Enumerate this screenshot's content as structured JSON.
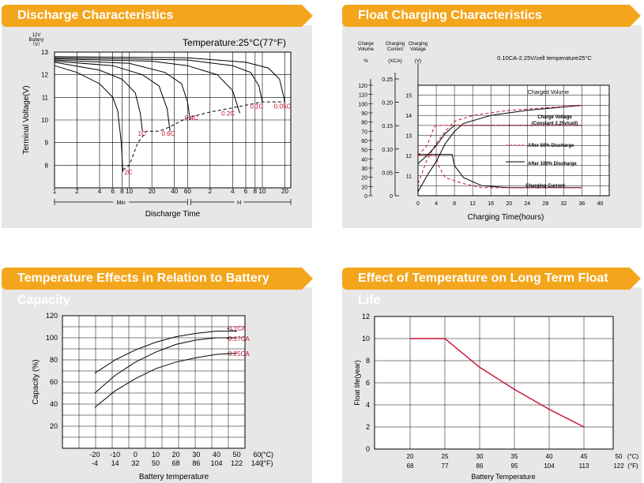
{
  "panels": [
    {
      "title": "Discharge Characteristics"
    },
    {
      "title": "Float Charging Characteristics"
    },
    {
      "title": "Temperature Effects in Relation to Battery Capacity"
    },
    {
      "title": "Effect of Temperature on Long Term Float Life"
    }
  ],
  "chart_data": [
    {
      "type": "line",
      "title": "Discharge Characteristics",
      "ylabel": "Terminal Voltage(V)",
      "ylabel_note": [
        "12V",
        "Battery",
        "（V）"
      ],
      "xlabel": "Discharge Time",
      "annotation": "Temperature:25°C(77°F)",
      "ylim": [
        7,
        13
      ],
      "y_ticks": [
        "13",
        "12",
        "11",
        "10",
        "9",
        "8"
      ],
      "x_ticks": [
        "1",
        "2",
        "4",
        "6",
        "8",
        "10",
        "20",
        "40",
        "60",
        "2",
        "4",
        "6",
        "8",
        "10",
        "20"
      ],
      "x_units": [
        "Min",
        "H"
      ],
      "series": [
        {
          "name": "2C",
          "values": [
            [
              1,
              12.4
            ],
            [
              2,
              12.1
            ],
            [
              4,
              11.6
            ],
            [
              6,
              11.0
            ],
            [
              7,
              10.4
            ],
            [
              7.8,
              9.0
            ],
            [
              8.2,
              7.7
            ]
          ]
        },
        {
          "name": "1C",
          "values": [
            [
              1,
              12.55
            ],
            [
              4,
              12.2
            ],
            [
              8,
              11.8
            ],
            [
              12,
              11.2
            ],
            [
              14,
              10.3
            ],
            [
              15,
              9.5
            ]
          ]
        },
        {
          "name": "0.6C",
          "values": [
            [
              1,
              12.6
            ],
            [
              6,
              12.4
            ],
            [
              15,
              12.0
            ],
            [
              25,
              11.5
            ],
            [
              32,
              10.5
            ],
            [
              35,
              9.5
            ]
          ]
        },
        {
          "name": "0.4C",
          "values": [
            [
              1,
              12.65
            ],
            [
              10,
              12.5
            ],
            [
              30,
              12.1
            ],
            [
              50,
              11.6
            ],
            [
              60,
              10.8
            ],
            [
              65,
              10.0
            ]
          ]
        },
        {
          "name": "0.2C",
          "values": [
            [
              1,
              12.7
            ],
            [
              20,
              12.6
            ],
            [
              60,
              12.4
            ],
            [
              150,
              12.0
            ],
            [
              240,
              11.3
            ],
            [
              300,
              10.3
            ]
          ]
        },
        {
          "name": "0.1C",
          "values": [
            [
              1,
              12.75
            ],
            [
              60,
              12.65
            ],
            [
              240,
              12.4
            ],
            [
              420,
              12.1
            ],
            [
              540,
              11.5
            ],
            [
              600,
              10.8
            ]
          ]
        },
        {
          "name": "0.05C",
          "values": [
            [
              1,
              12.8
            ],
            [
              60,
              12.75
            ],
            [
              360,
              12.55
            ],
            [
              720,
              12.3
            ],
            [
              1020,
              11.8
            ],
            [
              1200,
              10.8
            ]
          ]
        }
      ],
      "end_voltage_curve": [
        [
          8.2,
          7.8
        ],
        [
          10,
          8.0
        ],
        [
          13,
          9.0
        ],
        [
          17,
          9.5
        ],
        [
          25,
          9.5
        ],
        [
          35,
          9.7
        ],
        [
          60,
          10.1
        ],
        [
          120,
          10.35
        ],
        [
          300,
          10.6
        ],
        [
          600,
          10.8
        ],
        [
          1200,
          10.8
        ]
      ]
    },
    {
      "type": "line",
      "title": "Float Charging Characteristics",
      "xlabel": "Charging Time(hours)",
      "header_labels": [
        "Charge Volume",
        "Charging Current",
        "Charging Voltage"
      ],
      "units": [
        "%",
        "(XCA)",
        "(V)"
      ],
      "annotation": "0.10CA-2.25V/cell  temperature25°C",
      "volume_ticks": [
        "120",
        "110",
        "100",
        "90",
        "80",
        "70",
        "60",
        "50",
        "40",
        "30",
        "20",
        "10",
        "0"
      ],
      "current_ticks": [
        "0.25",
        "0.20",
        "0.15",
        "0.10",
        "0.05",
        "0"
      ],
      "voltage_ticks": [
        "15",
        "14",
        "13",
        "12",
        "11"
      ],
      "x_ticks": [
        "0",
        "4",
        "8",
        "12",
        "16",
        "20",
        "24",
        "28",
        "32",
        "36",
        "40"
      ],
      "curve_labels": [
        "Charged Volume",
        "Charge Voltage (Constant 2.25v/cell)",
        "Charging Current"
      ],
      "legend": [
        {
          "name": "After 50% Discharge",
          "style": "dashed",
          "color": "#c8102e"
        },
        {
          "name": "After 100% Discharge",
          "style": "solid",
          "color": "#000000"
        }
      ],
      "xlim": [
        0,
        42
      ],
      "voltage_ylim": [
        10,
        15.5
      ],
      "series": [
        {
          "name": "Charged Volume",
          "style": "solid",
          "values": [
            [
              0,
              10.2
            ],
            [
              2,
              11.0
            ],
            [
              4,
              11.7
            ],
            [
              6,
              12.6
            ],
            [
              8,
              13.2
            ],
            [
              10,
              13.6
            ],
            [
              16,
              14.0
            ],
            [
              24,
              14.25
            ],
            [
              36,
              14.5
            ]
          ]
        },
        {
          "name": "Charged Volume",
          "style": "dashed",
          "values": [
            [
              0,
              10.6
            ],
            [
              2,
              11.8
            ],
            [
              4,
              12.6
            ],
            [
              6,
              13.2
            ],
            [
              8,
              13.7
            ],
            [
              12,
              14.0
            ],
            [
              20,
              14.25
            ],
            [
              36,
              14.5
            ]
          ]
        },
        {
          "name": "Charge Voltage",
          "style": "solid",
          "values": [
            [
              0,
              11.6
            ],
            [
              2,
              12.0
            ],
            [
              4,
              12.5
            ],
            [
              6,
              13.1
            ],
            [
              8,
              13.5
            ],
            [
              20,
              13.5
            ],
            [
              36,
              13.5
            ]
          ]
        },
        {
          "name": "Charge Voltage",
          "style": "dashed",
          "values": [
            [
              0,
              12.0
            ],
            [
              2,
              12.5
            ],
            [
              3.5,
              13.4
            ],
            [
              4,
              13.5
            ],
            [
              36,
              13.5
            ]
          ]
        },
        {
          "name": "Charging Current",
          "style": "solid",
          "values": [
            [
              0,
              12.05
            ],
            [
              7.5,
              12.05
            ],
            [
              8,
              11.5
            ],
            [
              10,
              10.9
            ],
            [
              14,
              10.5
            ],
            [
              20,
              10.4
            ],
            [
              36,
              10.4
            ]
          ]
        },
        {
          "name": "Charging Current",
          "style": "dashed",
          "values": [
            [
              0,
              12.0
            ],
            [
              4,
              12.0
            ],
            [
              4.5,
              11.5
            ],
            [
              6,
              10.9
            ],
            [
              10,
              10.6
            ],
            [
              14,
              10.4
            ],
            [
              36,
              10.4
            ]
          ]
        }
      ]
    },
    {
      "type": "line",
      "title": "Temperature Effects in Relation to Battery Capacity",
      "ylabel": "Capacity (%)",
      "xlabel": "Battery temperature",
      "ylim": [
        0,
        120
      ],
      "y_ticks": [
        "120",
        "100",
        "80",
        "60",
        "40",
        "20"
      ],
      "x_ticks_c": [
        "-20",
        "-10",
        "0",
        "10",
        "20",
        "30",
        "40",
        "50",
        "60"
      ],
      "x_ticks_f": [
        "-4",
        "14",
        "32",
        "50",
        "68",
        "86",
        "104",
        "122",
        "140"
      ],
      "x_unit_c": "(°C)",
      "x_unit_f": "(°F)",
      "series": [
        {
          "name": "0.1CA",
          "values": [
            [
              -20,
              68
            ],
            [
              -10,
              80
            ],
            [
              0,
              89
            ],
            [
              10,
              96
            ],
            [
              20,
              101
            ],
            [
              30,
              104
            ],
            [
              40,
              106
            ],
            [
              50,
              106
            ]
          ]
        },
        {
          "name": "0.17CA",
          "values": [
            [
              -20,
              50
            ],
            [
              -10,
              66
            ],
            [
              0,
              78
            ],
            [
              10,
              87
            ],
            [
              20,
              94
            ],
            [
              30,
              98
            ],
            [
              40,
              100
            ],
            [
              50,
              100
            ]
          ]
        },
        {
          "name": "0.25CA",
          "values": [
            [
              -20,
              37
            ],
            [
              -10,
              52
            ],
            [
              0,
              63
            ],
            [
              10,
              72
            ],
            [
              20,
              78
            ],
            [
              30,
              82
            ],
            [
              40,
              85
            ],
            [
              50,
              86
            ]
          ]
        }
      ]
    },
    {
      "type": "line",
      "title": "Effect of Temperature on Long Term Float Life",
      "ylabel": "Float life(year)",
      "xlabel": "Battery Temperature",
      "ylim": [
        0,
        12
      ],
      "y_ticks": [
        "12",
        "10",
        "8",
        "6",
        "4",
        "2",
        "0"
      ],
      "x_ticks_c": [
        "20",
        "25",
        "30",
        "35",
        "40",
        "45",
        "50"
      ],
      "x_ticks_f": [
        "68",
        "77",
        "86",
        "95",
        "104",
        "113",
        "122"
      ],
      "x_unit_c": "(°C)",
      "x_unit_f": "(°F)",
      "line_color": "#c8102e",
      "series": [
        {
          "values": [
            [
              20,
              10
            ],
            [
              25,
              10
            ],
            [
              30,
              7.4
            ],
            [
              35,
              5.4
            ],
            [
              40,
              3.6
            ],
            [
              45,
              2
            ]
          ]
        }
      ]
    }
  ]
}
